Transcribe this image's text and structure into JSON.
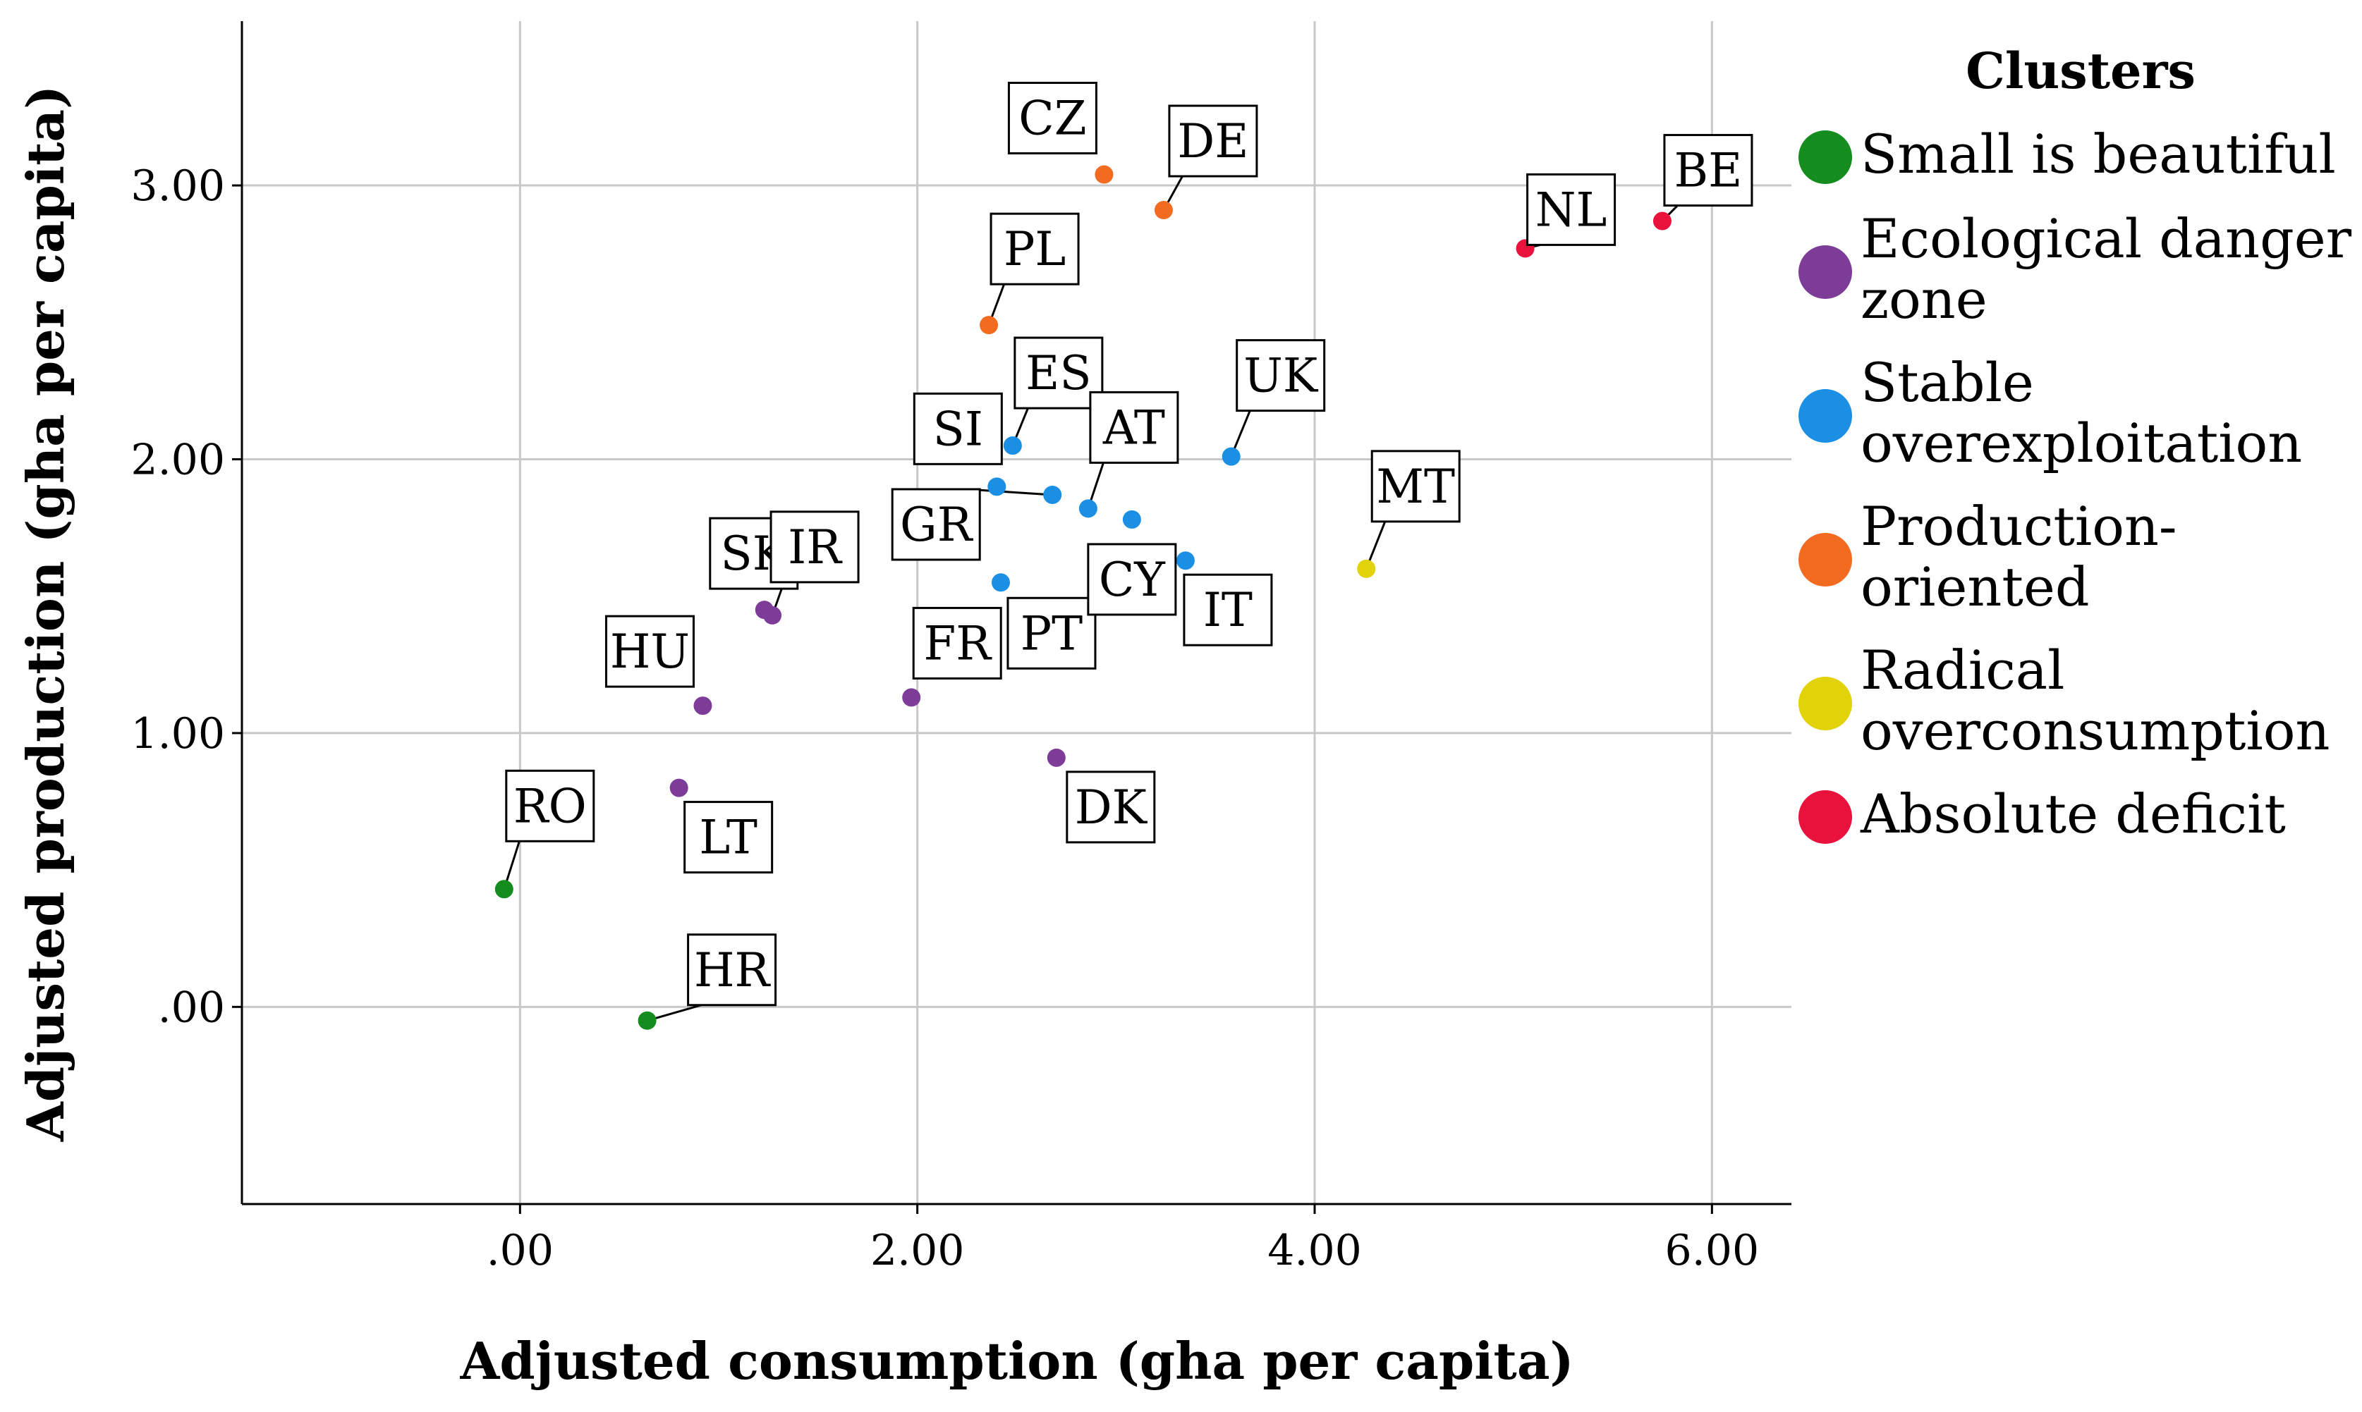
{
  "chart_data": {
    "type": "scatter",
    "xlabel": "Adjusted consumption (gha per capita)",
    "ylabel": "Adjusted production (gha per capita)",
    "xlim": [
      -1.4,
      6.4
    ],
    "ylim": [
      -0.72,
      3.6
    ],
    "xticks": [
      0,
      2,
      4,
      6
    ],
    "xtick_labels": [
      ".00",
      "2.00",
      "4.00",
      "6.00"
    ],
    "yticks": [
      0,
      1,
      2,
      3
    ],
    "ytick_labels": [
      ".00",
      "1.00",
      "2.00",
      "3.00"
    ],
    "grid": true,
    "legend": {
      "title": "Clusters",
      "position": "right",
      "entries": [
        {
          "lines": [
            "Small is beautiful"
          ],
          "color": "#148c1e"
        },
        {
          "lines": [
            "Ecological danger",
            "zone"
          ],
          "color": "#7d3c98"
        },
        {
          "lines": [
            "Stable",
            "overexploitation"
          ],
          "color": "#1a8fe3"
        },
        {
          "lines": [
            "Production-",
            "oriented"
          ],
          "color": "#f26b21"
        },
        {
          "lines": [
            "Radical",
            "overconsumption"
          ],
          "color": "#e1d20a"
        },
        {
          "lines": [
            "Absolute deficit"
          ],
          "color": "#e8123c"
        }
      ]
    },
    "points": [
      {
        "label": "RO",
        "x": -0.08,
        "y": 0.43,
        "cluster": 0
      },
      {
        "label": "HR",
        "x": 0.64,
        "y": -0.05,
        "cluster": 0
      },
      {
        "label": "HU",
        "x": 0.92,
        "y": 1.1,
        "cluster": 1
      },
      {
        "label": "LT",
        "x": 0.8,
        "y": 0.8,
        "cluster": 1
      },
      {
        "label": "SK",
        "x": 1.23,
        "y": 1.45,
        "cluster": 1
      },
      {
        "label": "IR",
        "x": 1.27,
        "y": 1.43,
        "cluster": 1
      },
      {
        "label": "FR",
        "x": 1.97,
        "y": 1.13,
        "cluster": 1
      },
      {
        "label": "DK",
        "x": 2.7,
        "y": 0.91,
        "cluster": 1
      },
      {
        "label": "SI",
        "x": 2.4,
        "y": 1.9,
        "cluster": 2
      },
      {
        "label": "ES",
        "x": 2.48,
        "y": 2.05,
        "cluster": 2
      },
      {
        "label": "GR",
        "x": 2.68,
        "y": 1.87,
        "cluster": 2
      },
      {
        "label": "PT",
        "x": 2.42,
        "y": 1.55,
        "cluster": 2
      },
      {
        "label": "AT",
        "x": 2.86,
        "y": 1.82,
        "cluster": 2
      },
      {
        "label": "CY",
        "x": 3.08,
        "y": 1.78,
        "cluster": 2
      },
      {
        "label": "IT",
        "x": 3.35,
        "y": 1.63,
        "cluster": 2
      },
      {
        "label": "UK",
        "x": 3.58,
        "y": 2.01,
        "cluster": 2
      },
      {
        "label": "PL",
        "x": 2.36,
        "y": 2.49,
        "cluster": 3
      },
      {
        "label": "CZ",
        "x": 2.94,
        "y": 3.04,
        "cluster": 3
      },
      {
        "label": "DE",
        "x": 3.24,
        "y": 2.91,
        "cluster": 3
      },
      {
        "label": "MT",
        "x": 4.26,
        "y": 1.6,
        "cluster": 4
      },
      {
        "label": "NL",
        "x": 5.06,
        "y": 2.77,
        "cluster": 5
      },
      {
        "label": "BE",
        "x": 5.75,
        "y": 2.87,
        "cluster": 5
      }
    ]
  }
}
